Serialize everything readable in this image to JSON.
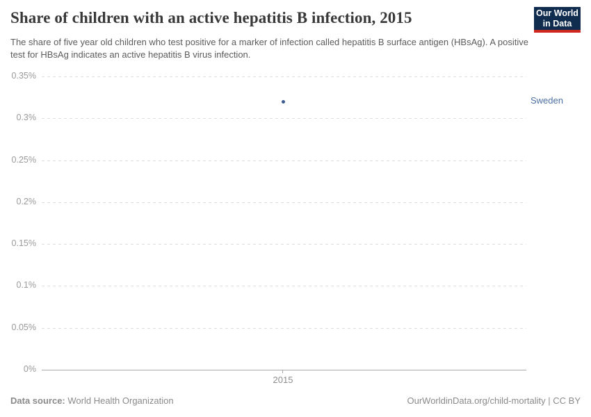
{
  "header": {
    "title": "Share of children with an active hepatitis B infection, 2015",
    "subtitle": "The share of five year old children who test positive for a marker of infection called hepatitis B surface antigen (HBsAg). A positive test for HBsAg indicates an active hepatitis B virus infection.",
    "logo": {
      "line1": "Our World",
      "line2": "in Data",
      "bg_color": "#102d50",
      "stripe_color": "#d0281f"
    }
  },
  "chart_data": {
    "type": "scatter",
    "title": "Share of children with an active hepatitis B infection, 2015",
    "x": [
      2015
    ],
    "series": [
      {
        "name": "Sweden",
        "values": [
          0.32
        ],
        "point_color": "#3d5c8e",
        "label_color": "#4c6fa5"
      }
    ],
    "unit": "%",
    "ylim": [
      0,
      0.35
    ],
    "yticks": [
      {
        "value": 0,
        "label": "0%"
      },
      {
        "value": 0.05,
        "label": "0.05%"
      },
      {
        "value": 0.1,
        "label": "0.1%"
      },
      {
        "value": 0.15,
        "label": "0.15%"
      },
      {
        "value": 0.2,
        "label": "0.2%"
      },
      {
        "value": 0.25,
        "label": "0.25%"
      },
      {
        "value": 0.3,
        "label": "0.3%"
      },
      {
        "value": 0.35,
        "label": "0.35%"
      }
    ],
    "xticks": [
      {
        "value": 2015,
        "label": "2015"
      }
    ],
    "grid": "horizontal-dashed",
    "legend_position": "right-of-point"
  },
  "footer": {
    "datasource_label": "Data source:",
    "datasource_value": "World Health Organization",
    "credit": "OurWorldinData.org/child-mortality | CC BY"
  }
}
